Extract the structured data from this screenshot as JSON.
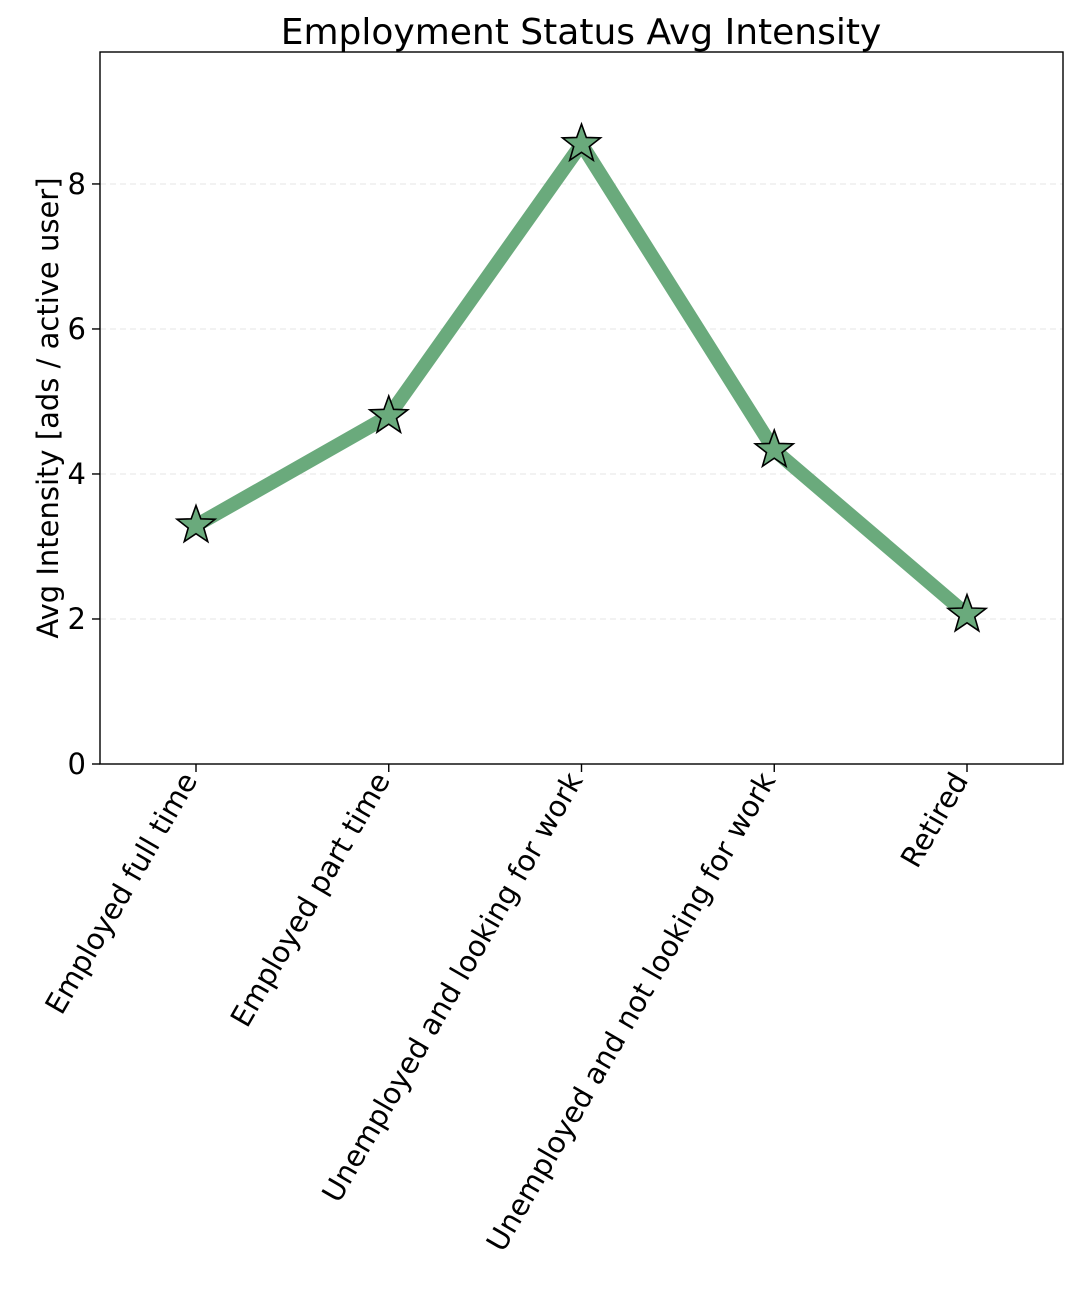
{
  "chart_data": {
    "type": "line",
    "title": "Employment Status Avg Intensity",
    "xlabel": "",
    "ylabel": "Avg Intensity [ads / active user]",
    "categories": [
      "Employed full time",
      "Employed part time",
      "Unemployed and looking for work",
      "Unemployed and not looking for work",
      "Retired"
    ],
    "series": [
      {
        "name": "Avg Intensity",
        "values": [
          3.29,
          4.8,
          8.55,
          4.33,
          2.06
        ]
      }
    ],
    "ylim": [
      0,
      9.82
    ],
    "yticks": [
      0,
      2,
      4,
      6,
      8
    ],
    "grid": true,
    "marker": "star",
    "colors": {
      "line": "#6aaa7c",
      "marker_fill": "#6aaa7c",
      "marker_edge": "#000000"
    }
  }
}
